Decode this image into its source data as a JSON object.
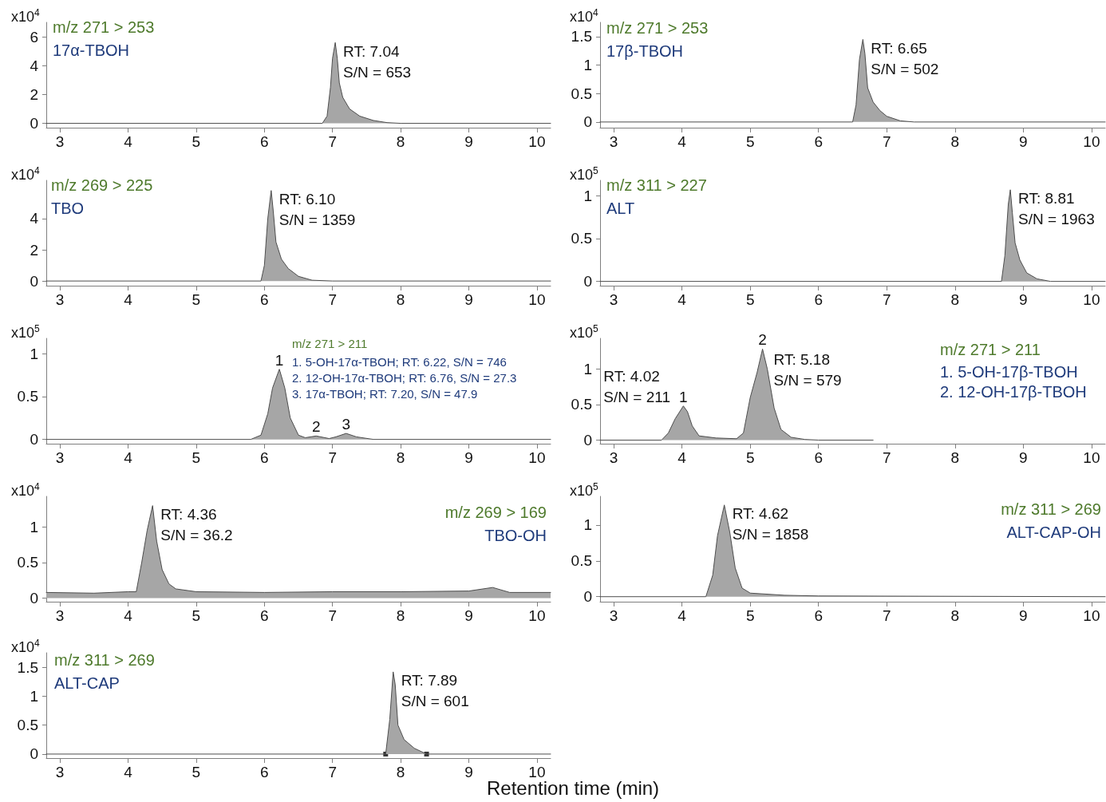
{
  "chart_data": [
    {
      "type": "area",
      "title": "m/z 271 > 253",
      "subtitle": "17α-TBOH",
      "ylabel": "x10$^{4}$",
      "annotations": [
        {
          "text": "RT: 7.04\nS/N = 653",
          "x": 7.04,
          "y": 5.6
        }
      ],
      "x": [
        2.8,
        6.85,
        6.92,
        6.97,
        7.0,
        7.04,
        7.07,
        7.1,
        7.15,
        7.25,
        7.4,
        7.6,
        7.8,
        8.0,
        10.2
      ],
      "values": [
        0,
        0,
        0.5,
        2.5,
        4.5,
        5.6,
        4.5,
        2.8,
        1.8,
        1.0,
        0.5,
        0.2,
        0.05,
        0,
        0
      ],
      "color": "#a6a6a6",
      "marker": "none",
      "grid": false,
      "xlim": [
        2.8,
        10.2
      ],
      "xticks": [
        3,
        4,
        5,
        6,
        7,
        8,
        9,
        10
      ],
      "ylim": [
        -0.3,
        7
      ],
      "yticks": [
        0,
        2,
        4,
        6
      ]
    },
    {
      "type": "area",
      "title": "m/z 271 > 253",
      "subtitle": "17β-TBOH",
      "ylabel": "x10$^{4}$",
      "annotations": [
        {
          "text": "RT: 6.65\nS/N = 502",
          "x": 6.65,
          "y": 1.45
        }
      ],
      "x": [
        2.8,
        6.5,
        6.55,
        6.6,
        6.65,
        6.68,
        6.72,
        6.8,
        6.9,
        7.0,
        7.2,
        7.4,
        10.2
      ],
      "values": [
        0,
        0,
        0.3,
        1.1,
        1.45,
        1.2,
        0.6,
        0.35,
        0.2,
        0.1,
        0.02,
        0,
        0
      ],
      "color": "#a6a6a6",
      "marker": "none",
      "grid": false,
      "xlim": [
        2.8,
        10.2
      ],
      "xticks": [
        3,
        4,
        5,
        6,
        7,
        8,
        9,
        10
      ],
      "ylim": [
        -0.1,
        1.75
      ],
      "yticks": [
        0,
        0.5,
        1,
        1.5
      ]
    },
    {
      "type": "area",
      "title": "m/z 269 > 225",
      "subtitle": "TBO",
      "ylabel": "x10$^{4}$",
      "annotations": [
        {
          "text": "RT: 6.10\nS/N = 1359",
          "x": 6.1,
          "y": 5.8
        }
      ],
      "x": [
        2.8,
        5.95,
        6.0,
        6.05,
        6.1,
        6.13,
        6.17,
        6.25,
        6.35,
        6.5,
        6.7,
        7.0,
        10.2
      ],
      "values": [
        0,
        0,
        1.0,
        4.0,
        5.8,
        4.5,
        2.5,
        1.4,
        0.8,
        0.3,
        0.05,
        0,
        0
      ],
      "color": "#a6a6a6",
      "marker": "none",
      "grid": false,
      "xlim": [
        2.8,
        10.2
      ],
      "xticks": [
        3,
        4,
        5,
        6,
        7,
        8,
        9,
        10
      ],
      "ylim": [
        -0.3,
        6.45
      ],
      "yticks": [
        0,
        2,
        4
      ]
    },
    {
      "type": "area",
      "title": "m/z 311 > 227",
      "subtitle": "ALT",
      "ylabel": "x10$^{5}$",
      "annotations": [
        {
          "text": "RT: 8.81\nS/N = 1963",
          "x": 8.81,
          "y": 1.07
        }
      ],
      "x": [
        2.8,
        8.68,
        8.73,
        8.78,
        8.81,
        8.84,
        8.88,
        8.95,
        9.05,
        9.2,
        9.4,
        10.2
      ],
      "values": [
        0,
        0,
        0.3,
        0.9,
        1.07,
        0.8,
        0.45,
        0.25,
        0.1,
        0.03,
        0,
        0
      ],
      "color": "#a6a6a6",
      "marker": "none",
      "grid": false,
      "xlim": [
        2.8,
        10.2
      ],
      "xticks": [
        3,
        4,
        5,
        6,
        7,
        8,
        9,
        10
      ],
      "ylim": [
        -0.05,
        1.18
      ],
      "yticks": [
        0,
        0.5,
        1
      ]
    },
    {
      "type": "area",
      "title": "m/z 271 > 211",
      "subtitle": "1. 5-OH-17α-TBOH; RT: 6.22, S/N = 746\n2. 12-OH-17α-TBOH; RT: 6.76, S/N = 27.3\n3. 17α-TBOH; RT: 7.20, S/N = 47.9",
      "ylabel": "x10$^{5}$",
      "annotations": [
        {
          "text": "1",
          "x": 6.22,
          "y": 0.82
        },
        {
          "text": "2",
          "x": 6.76,
          "y": 0.04
        },
        {
          "text": "3",
          "x": 7.2,
          "y": 0.07
        }
      ],
      "x": [
        2.8,
        5.8,
        5.95,
        6.05,
        6.12,
        6.22,
        6.3,
        6.38,
        6.5,
        6.6,
        6.76,
        6.95,
        7.05,
        7.2,
        7.35,
        7.6,
        10.2
      ],
      "values": [
        0,
        0,
        0.05,
        0.3,
        0.6,
        0.82,
        0.6,
        0.25,
        0.05,
        0.02,
        0.04,
        0.01,
        0.03,
        0.07,
        0.03,
        0,
        0
      ],
      "color": "#a6a6a6",
      "marker": "none",
      "grid": false,
      "xlim": [
        2.8,
        10.2
      ],
      "xticks": [
        3,
        4,
        5,
        6,
        7,
        8,
        9,
        10
      ],
      "ylim": [
        -0.05,
        1.18
      ],
      "yticks": [
        0,
        0.5,
        1
      ]
    },
    {
      "type": "area",
      "title": "m/z 271 > 211",
      "subtitle": "1. 5-OH-17β-TBOH\n2. 12-OH-17β-TBOH",
      "ylabel": "x10$^{5}$",
      "annotations": [
        {
          "text": "1",
          "x": 4.02,
          "y": 0.48
        },
        {
          "text": "2",
          "x": 5.18,
          "y": 1.28
        },
        {
          "text": "RT: 4.02\nS/N = 211",
          "x": 4.02,
          "y": 0.48
        },
        {
          "text": "RT: 5.18\nS/N = 579",
          "x": 5.18,
          "y": 1.28
        }
      ],
      "x": [
        2.8,
        3.7,
        3.8,
        3.9,
        4.02,
        4.08,
        4.15,
        4.25,
        4.5,
        4.8,
        4.9,
        5.0,
        5.1,
        5.18,
        5.25,
        5.35,
        5.45,
        5.6,
        5.8,
        6.0,
        6.8
      ],
      "values": [
        0,
        0,
        0.1,
        0.3,
        0.48,
        0.4,
        0.2,
        0.06,
        0.03,
        0.02,
        0.1,
        0.6,
        0.95,
        1.28,
        1.0,
        0.45,
        0.15,
        0.04,
        0.01,
        0,
        0
      ],
      "color": "#a6a6a6",
      "marker": "none",
      "grid": false,
      "xlim": [
        2.8,
        10.2
      ],
      "xticks": [
        3,
        4,
        5,
        6,
        7,
        8,
        9,
        10
      ],
      "ylim": [
        -0.05,
        1.43
      ],
      "yticks": [
        0,
        0.5,
        1
      ]
    },
    {
      "type": "area",
      "title": "m/z 269 > 169",
      "subtitle": "TBO-OH",
      "ylabel": "x10$^{4}$",
      "annotations": [
        {
          "text": "RT: 4.36\nS/N = 36.2",
          "x": 4.36,
          "y": 1.3
        }
      ],
      "x": [
        2.8,
        3.5,
        4.0,
        4.12,
        4.2,
        4.28,
        4.36,
        4.42,
        4.5,
        4.6,
        4.7,
        5.0,
        6.0,
        7.0,
        8.0,
        9.0,
        9.35,
        9.6,
        10.2
      ],
      "values": [
        0.08,
        0.07,
        0.09,
        0.09,
        0.5,
        0.95,
        1.3,
        0.8,
        0.4,
        0.2,
        0.13,
        0.09,
        0.08,
        0.09,
        0.09,
        0.1,
        0.15,
        0.08,
        0.08
      ],
      "color": "#a6a6a6",
      "marker": "none",
      "grid": false,
      "xlim": [
        2.8,
        10.2
      ],
      "xticks": [
        3,
        4,
        5,
        6,
        7,
        8,
        9,
        10
      ],
      "ylim": [
        -0.05,
        1.43
      ],
      "yticks": [
        0,
        0.5,
        1
      ]
    },
    {
      "type": "area",
      "title": "m/z 311 > 269",
      "subtitle": "ALT-CAP-OH",
      "ylabel": "x10$^{5}$",
      "annotations": [
        {
          "text": "RT: 4.62\nS/N = 1858",
          "x": 4.62,
          "y": 1.28
        }
      ],
      "x": [
        2.8,
        4.35,
        4.45,
        4.52,
        4.62,
        4.7,
        4.78,
        4.88,
        5.0,
        5.5,
        6.0,
        10.2
      ],
      "values": [
        0,
        0,
        0.3,
        0.85,
        1.28,
        0.9,
        0.4,
        0.12,
        0.05,
        0.02,
        0.01,
        0
      ],
      "color": "#a6a6a6",
      "marker": "none",
      "grid": false,
      "xlim": [
        2.8,
        10.2
      ],
      "xticks": [
        3,
        4,
        5,
        6,
        7,
        8,
        9,
        10
      ],
      "ylim": [
        -0.07,
        1.4
      ],
      "yticks": [
        0,
        0.5,
        1
      ]
    },
    {
      "type": "area",
      "title": "m/z 311 > 269",
      "subtitle": "ALT-CAP",
      "ylabel": "x10$^{4}$",
      "xlabel": "Retention time (min)",
      "annotations": [
        {
          "text": "RT: 7.89\nS/N = 601",
          "x": 7.89,
          "y": 1.42
        }
      ],
      "series": [
        {
          "color": "#a6a6a6",
          "x": [
            2.8,
            7.78,
            7.84,
            7.89,
            7.92,
            7.96,
            8.05,
            8.2,
            8.38,
            10.2
          ],
          "values": [
            0,
            0,
            0.6,
            1.42,
            1.2,
            0.5,
            0.25,
            0.1,
            0,
            0
          ]
        },
        {
          "type": "scatter",
          "marker": "square",
          "color": "#000000",
          "x": [
            7.78,
            8.38
          ],
          "values": [
            0,
            0
          ]
        }
      ],
      "marker": "none",
      "grid": false,
      "xlim": [
        2.8,
        10.2
      ],
      "xticks": [
        3,
        4,
        5,
        6,
        7,
        8,
        9,
        10
      ],
      "ylim": [
        -0.07,
        1.75
      ],
      "yticks": [
        0,
        0.5,
        1,
        1.5
      ]
    }
  ]
}
